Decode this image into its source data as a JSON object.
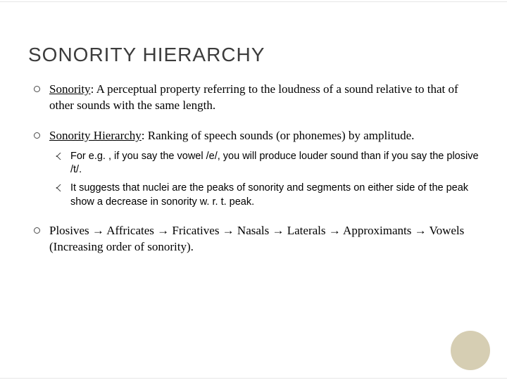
{
  "title": "SONORITY HIERARCHY",
  "colors": {
    "text": "#000000",
    "title": "#3c3c3c",
    "background": "#ffffff",
    "accent_circle": "#cfc6a6",
    "bullet_ring": "#4a4a4a"
  },
  "typography": {
    "title_font": "Century Gothic / sans-serif",
    "title_size_pt": 21,
    "body_font": "Georgia / serif",
    "body_size_pt": 13,
    "sub_font": "Arial / sans-serif",
    "sub_size_pt": 11
  },
  "bullets": [
    {
      "term": "Sonority",
      "text": ": A perceptual property referring to the loudness of a sound relative to that of other sounds with the same length."
    },
    {
      "term": "Sonority Hierarchy",
      "text": ": Ranking of speech sounds (or phonemes) by amplitude.",
      "sub": [
        "For e.g. , if you say the vowel /e/, you will produce louder sound than if you say the plosive /t/.",
        "It suggests that nuclei are the peaks of sonority and segments on either side of the peak show a decrease in sonority w. r. t. peak."
      ]
    },
    {
      "text": "Plosives → Affricates → Fricatives → Nasals → Laterals → Approximants → Vowels (Increasing order of sonority)."
    }
  ]
}
